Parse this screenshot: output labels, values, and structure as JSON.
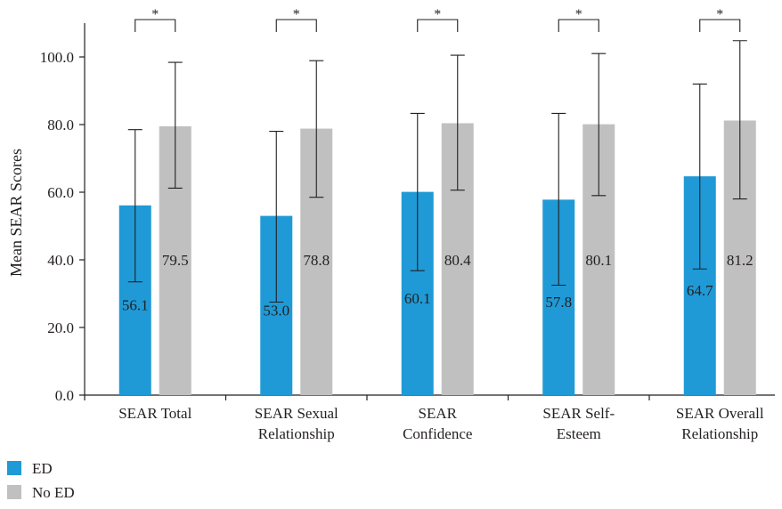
{
  "chart_data": {
    "type": "bar",
    "title": "",
    "xlabel": "",
    "ylabel": "Mean SEAR Scores",
    "ylim": [
      0,
      110
    ],
    "yticks": [
      0,
      20,
      40,
      60,
      80,
      100
    ],
    "ytick_labels": [
      "0.0",
      "20.0",
      "40.0",
      "60.0",
      "80.0",
      "100.0"
    ],
    "categories": [
      [
        "SEAR Total"
      ],
      [
        "SEAR Sexual",
        "Relationship"
      ],
      [
        "SEAR",
        "Confidence"
      ],
      [
        "SEAR Self-",
        "Esteem"
      ],
      [
        "SEAR Overall",
        "Relationship"
      ]
    ],
    "series": [
      {
        "name": "ED",
        "color": "#1f9ad6",
        "values": [
          56.1,
          53.0,
          60.1,
          57.8,
          64.7
        ],
        "labels": [
          "56.1",
          "53.0",
          "60.1",
          "57.8",
          "64.7"
        ],
        "error_low": [
          33.5,
          27.5,
          36.8,
          32.5,
          37.3
        ],
        "error_high": [
          78.5,
          78.0,
          83.3,
          83.3,
          92.0
        ]
      },
      {
        "name": "No ED",
        "color": "#c0c0c0",
        "values": [
          79.5,
          78.8,
          80.4,
          80.1,
          81.2
        ],
        "labels": [
          "79.5",
          "78.8",
          "80.4",
          "80.1",
          "81.2"
        ],
        "error_low": [
          61.2,
          58.5,
          60.6,
          59.0,
          58.0
        ],
        "error_high": [
          98.4,
          98.9,
          100.5,
          101.0,
          104.8
        ]
      }
    ],
    "significance_markers": [
      "*",
      "*",
      "*",
      "*",
      "*"
    ],
    "grid": false,
    "legend_position": "bottom-left"
  }
}
